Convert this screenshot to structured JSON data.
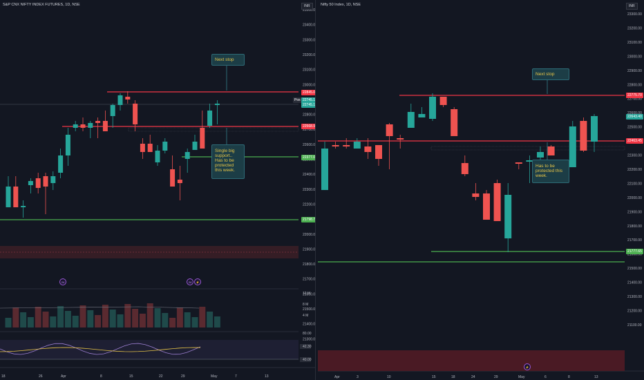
{
  "left": {
    "title": "S&P CNX NIFTY INDEX FUTURES, 1D, NSE",
    "currency": "INR",
    "yaxis": [
      "23500.00",
      "23400.00",
      "23300.00",
      "23200.00",
      "23100.00",
      "23000.00",
      "22900.00",
      "22800.00",
      "22700.00",
      "22600.00",
      "22500.00",
      "22400.00",
      "22300.00",
      "22200.00",
      "22100.00",
      "22000.00",
      "21900.00",
      "21800.00",
      "21700.00",
      "21600.00",
      "21500.00",
      "21400.00",
      "21300.00"
    ],
    "xaxis": [
      "18",
      "26",
      "Apr",
      "8",
      "15",
      "22",
      "29",
      "May",
      "7",
      "13"
    ],
    "price_tags": {
      "red_top": "22845.00",
      "pos": "Pos",
      "green1": "22745.15",
      "green2": "22745.15",
      "red_mid": "22568.90",
      "green_mid": "22377.00",
      "green_low": "21798.75"
    },
    "annotations": {
      "next_stop": "Next stop",
      "support": "Single big support.. Has to be protected this week."
    },
    "volume_axis": [
      "12 M",
      "8 M",
      "4 M"
    ],
    "rsi_axis": [
      "80.00",
      "42.30",
      "40.00"
    ],
    "events": [
      "24",
      "⚡",
      "24"
    ],
    "colors": {
      "up": "#26a69a",
      "down": "#ef5350",
      "red_line": "#f23645",
      "green_line": "#4caf50"
    }
  },
  "right": {
    "title": "Nifty 50 Index, 1D, NSE",
    "currency": "INR",
    "yaxis": [
      "23300.00",
      "23200.00",
      "23100.00",
      "23000.00",
      "22900.00",
      "22800.00",
      "22700.00",
      "22600.00",
      "22500.00",
      "22400.00",
      "22300.00",
      "22200.00",
      "22100.00",
      "22000.00",
      "21900.00",
      "21800.00",
      "21700.00",
      "21600.00",
      "21500.00",
      "21400.00",
      "21300.00",
      "21200.00",
      "21100.00"
    ],
    "xaxis": [
      "Apr",
      "3",
      "10",
      "15",
      "18",
      "24",
      "29",
      "May",
      "6",
      "8",
      "13"
    ],
    "price_tags": {
      "red_top": "22775.70",
      "green_cur": "22643.40",
      "red_mid": "22463.45",
      "green_low": "21777.65"
    },
    "annotations": {
      "next_stop": "Next stop",
      "protect": "Has to be protected this week."
    },
    "events": [
      "⚡"
    ],
    "colors": {
      "up": "#26a69a",
      "down": "#ef5350",
      "red_line": "#f23645",
      "green_line": "#4caf50"
    }
  }
}
